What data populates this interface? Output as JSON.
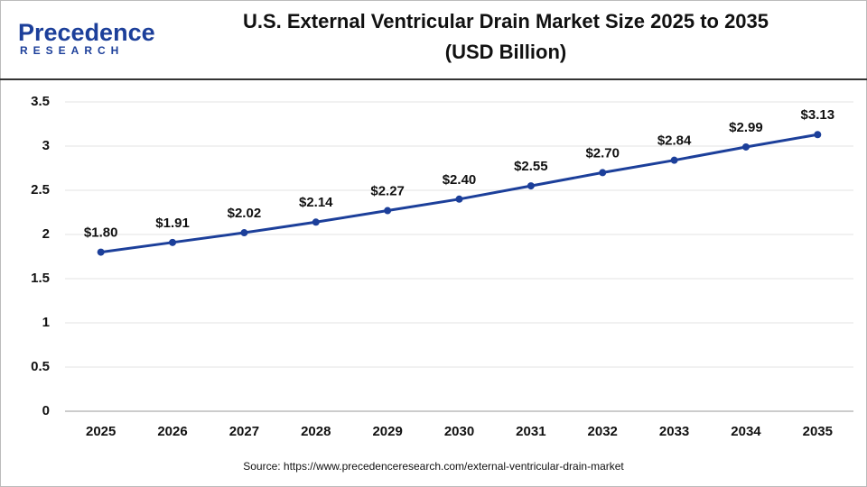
{
  "logo": {
    "name": "Precedence",
    "tagline": "RESEARCH"
  },
  "chart_data": {
    "type": "line",
    "title": [
      "U.S. External Ventricular Drain Market Size 2025 to 2035",
      "(USD Billion)"
    ],
    "categories": [
      "2025",
      "2026",
      "2027",
      "2028",
      "2029",
      "2030",
      "2031",
      "2032",
      "2033",
      "2034",
      "2035"
    ],
    "values": [
      1.8,
      1.91,
      2.02,
      2.14,
      2.27,
      2.4,
      2.55,
      2.7,
      2.84,
      2.99,
      3.13
    ],
    "value_labels": [
      "$1.80",
      "$1.91",
      "$2.02",
      "$2.14",
      "$2.27",
      "$2.40",
      "$2.55",
      "$2.70",
      "$2.84",
      "$2.99",
      "$3.13"
    ],
    "color": "#1c3f9a",
    "ylim": [
      0,
      3.5
    ],
    "yticks": [
      0,
      0.5,
      1,
      1.5,
      2,
      2.5,
      3,
      3.5
    ],
    "grid": true,
    "source": "Source: https://www.precedenceresearch.com/external-ventricular-drain-market"
  }
}
